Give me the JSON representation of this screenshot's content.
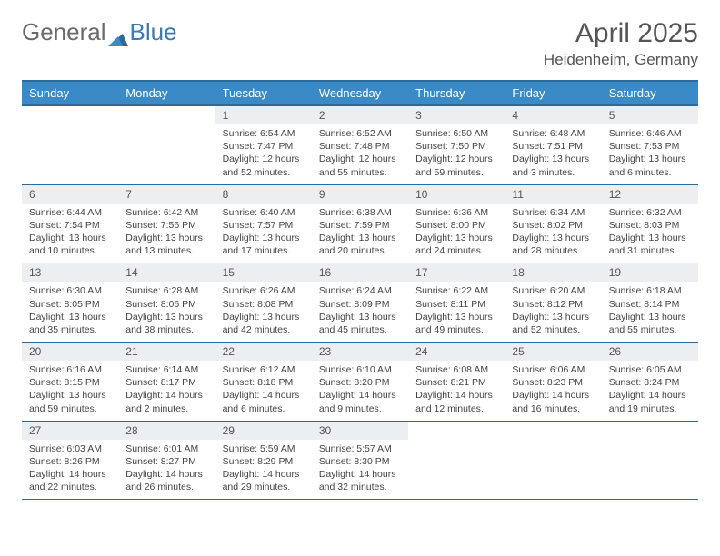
{
  "brand": {
    "part1": "General",
    "part2": "Blue"
  },
  "title": "April 2025",
  "location": "Heidenheim, Germany",
  "colors": {
    "header_bg": "#3a8ac8",
    "header_border": "#2b6a9e",
    "daynum_bg": "#eceff1",
    "text": "#444444",
    "brand_gray": "#6a6a6a",
    "brand_blue": "#3a7ab8"
  },
  "weekdays": [
    "Sunday",
    "Monday",
    "Tuesday",
    "Wednesday",
    "Thursday",
    "Friday",
    "Saturday"
  ],
  "weeks": [
    [
      {
        "empty": true
      },
      {
        "empty": true
      },
      {
        "day": "1",
        "sunrise": "Sunrise: 6:54 AM",
        "sunset": "Sunset: 7:47 PM",
        "daylight": "Daylight: 12 hours and 52 minutes."
      },
      {
        "day": "2",
        "sunrise": "Sunrise: 6:52 AM",
        "sunset": "Sunset: 7:48 PM",
        "daylight": "Daylight: 12 hours and 55 minutes."
      },
      {
        "day": "3",
        "sunrise": "Sunrise: 6:50 AM",
        "sunset": "Sunset: 7:50 PM",
        "daylight": "Daylight: 12 hours and 59 minutes."
      },
      {
        "day": "4",
        "sunrise": "Sunrise: 6:48 AM",
        "sunset": "Sunset: 7:51 PM",
        "daylight": "Daylight: 13 hours and 3 minutes."
      },
      {
        "day": "5",
        "sunrise": "Sunrise: 6:46 AM",
        "sunset": "Sunset: 7:53 PM",
        "daylight": "Daylight: 13 hours and 6 minutes."
      }
    ],
    [
      {
        "day": "6",
        "sunrise": "Sunrise: 6:44 AM",
        "sunset": "Sunset: 7:54 PM",
        "daylight": "Daylight: 13 hours and 10 minutes."
      },
      {
        "day": "7",
        "sunrise": "Sunrise: 6:42 AM",
        "sunset": "Sunset: 7:56 PM",
        "daylight": "Daylight: 13 hours and 13 minutes."
      },
      {
        "day": "8",
        "sunrise": "Sunrise: 6:40 AM",
        "sunset": "Sunset: 7:57 PM",
        "daylight": "Daylight: 13 hours and 17 minutes."
      },
      {
        "day": "9",
        "sunrise": "Sunrise: 6:38 AM",
        "sunset": "Sunset: 7:59 PM",
        "daylight": "Daylight: 13 hours and 20 minutes."
      },
      {
        "day": "10",
        "sunrise": "Sunrise: 6:36 AM",
        "sunset": "Sunset: 8:00 PM",
        "daylight": "Daylight: 13 hours and 24 minutes."
      },
      {
        "day": "11",
        "sunrise": "Sunrise: 6:34 AM",
        "sunset": "Sunset: 8:02 PM",
        "daylight": "Daylight: 13 hours and 28 minutes."
      },
      {
        "day": "12",
        "sunrise": "Sunrise: 6:32 AM",
        "sunset": "Sunset: 8:03 PM",
        "daylight": "Daylight: 13 hours and 31 minutes."
      }
    ],
    [
      {
        "day": "13",
        "sunrise": "Sunrise: 6:30 AM",
        "sunset": "Sunset: 8:05 PM",
        "daylight": "Daylight: 13 hours and 35 minutes."
      },
      {
        "day": "14",
        "sunrise": "Sunrise: 6:28 AM",
        "sunset": "Sunset: 8:06 PM",
        "daylight": "Daylight: 13 hours and 38 minutes."
      },
      {
        "day": "15",
        "sunrise": "Sunrise: 6:26 AM",
        "sunset": "Sunset: 8:08 PM",
        "daylight": "Daylight: 13 hours and 42 minutes."
      },
      {
        "day": "16",
        "sunrise": "Sunrise: 6:24 AM",
        "sunset": "Sunset: 8:09 PM",
        "daylight": "Daylight: 13 hours and 45 minutes."
      },
      {
        "day": "17",
        "sunrise": "Sunrise: 6:22 AM",
        "sunset": "Sunset: 8:11 PM",
        "daylight": "Daylight: 13 hours and 49 minutes."
      },
      {
        "day": "18",
        "sunrise": "Sunrise: 6:20 AM",
        "sunset": "Sunset: 8:12 PM",
        "daylight": "Daylight: 13 hours and 52 minutes."
      },
      {
        "day": "19",
        "sunrise": "Sunrise: 6:18 AM",
        "sunset": "Sunset: 8:14 PM",
        "daylight": "Daylight: 13 hours and 55 minutes."
      }
    ],
    [
      {
        "day": "20",
        "sunrise": "Sunrise: 6:16 AM",
        "sunset": "Sunset: 8:15 PM",
        "daylight": "Daylight: 13 hours and 59 minutes."
      },
      {
        "day": "21",
        "sunrise": "Sunrise: 6:14 AM",
        "sunset": "Sunset: 8:17 PM",
        "daylight": "Daylight: 14 hours and 2 minutes."
      },
      {
        "day": "22",
        "sunrise": "Sunrise: 6:12 AM",
        "sunset": "Sunset: 8:18 PM",
        "daylight": "Daylight: 14 hours and 6 minutes."
      },
      {
        "day": "23",
        "sunrise": "Sunrise: 6:10 AM",
        "sunset": "Sunset: 8:20 PM",
        "daylight": "Daylight: 14 hours and 9 minutes."
      },
      {
        "day": "24",
        "sunrise": "Sunrise: 6:08 AM",
        "sunset": "Sunset: 8:21 PM",
        "daylight": "Daylight: 14 hours and 12 minutes."
      },
      {
        "day": "25",
        "sunrise": "Sunrise: 6:06 AM",
        "sunset": "Sunset: 8:23 PM",
        "daylight": "Daylight: 14 hours and 16 minutes."
      },
      {
        "day": "26",
        "sunrise": "Sunrise: 6:05 AM",
        "sunset": "Sunset: 8:24 PM",
        "daylight": "Daylight: 14 hours and 19 minutes."
      }
    ],
    [
      {
        "day": "27",
        "sunrise": "Sunrise: 6:03 AM",
        "sunset": "Sunset: 8:26 PM",
        "daylight": "Daylight: 14 hours and 22 minutes."
      },
      {
        "day": "28",
        "sunrise": "Sunrise: 6:01 AM",
        "sunset": "Sunset: 8:27 PM",
        "daylight": "Daylight: 14 hours and 26 minutes."
      },
      {
        "day": "29",
        "sunrise": "Sunrise: 5:59 AM",
        "sunset": "Sunset: 8:29 PM",
        "daylight": "Daylight: 14 hours and 29 minutes."
      },
      {
        "day": "30",
        "sunrise": "Sunrise: 5:57 AM",
        "sunset": "Sunset: 8:30 PM",
        "daylight": "Daylight: 14 hours and 32 minutes."
      },
      {
        "empty": true
      },
      {
        "empty": true
      },
      {
        "empty": true
      }
    ]
  ]
}
